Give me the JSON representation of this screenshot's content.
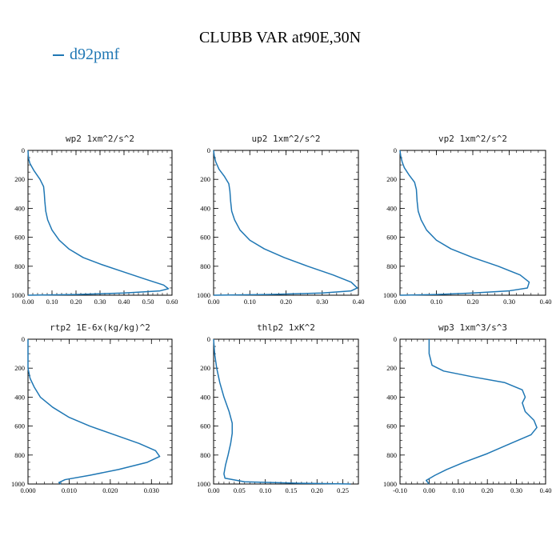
{
  "title": "CLUBB VAR at90E,30N",
  "legend": {
    "label": "d92pmf",
    "color": "#1f77b4"
  },
  "chart_data": [
    {
      "type": "line",
      "title": "wp2   1xm^2/s^2",
      "xlim": [
        0,
        0.6
      ],
      "ylim": [
        0,
        1000
      ],
      "y_inverted": true,
      "xticks": [
        "0.00",
        "0.10",
        "0.20",
        "0.30",
        "0.40",
        "0.50",
        "0.60"
      ],
      "yticks": [
        "0",
        "200",
        "400",
        "600",
        "800",
        "1000"
      ],
      "series": [
        {
          "x": [
            0.0,
            0.001,
            0.003,
            0.008,
            0.025,
            0.05,
            0.065,
            0.068,
            0.07,
            0.074,
            0.082,
            0.1,
            0.13,
            0.17,
            0.23,
            0.31,
            0.4,
            0.49,
            0.565,
            0.585,
            0.55,
            0.4,
            0.2,
            0.0
          ],
          "y": [
            0,
            30,
            60,
            90,
            140,
            200,
            250,
            300,
            350,
            420,
            480,
            550,
            620,
            680,
            740,
            790,
            840,
            890,
            930,
            955,
            970,
            985,
            995,
            1000
          ]
        }
      ]
    },
    {
      "type": "line",
      "title": "up2   1xm^2/s^2",
      "xlim": [
        0,
        0.4
      ],
      "ylim": [
        0,
        1000
      ],
      "y_inverted": true,
      "xticks": [
        "0.00",
        "0.10",
        "0.20",
        "0.30",
        "0.40"
      ],
      "yticks": [
        "0",
        "200",
        "400",
        "600",
        "800",
        "1000"
      ],
      "series": [
        {
          "x": [
            0.0,
            0.002,
            0.006,
            0.015,
            0.03,
            0.042,
            0.045,
            0.047,
            0.05,
            0.058,
            0.073,
            0.1,
            0.14,
            0.195,
            0.26,
            0.33,
            0.38,
            0.397,
            0.38,
            0.3,
            0.15,
            0.0
          ],
          "y": [
            0,
            40,
            80,
            130,
            180,
            230,
            280,
            350,
            420,
            480,
            550,
            620,
            680,
            740,
            800,
            860,
            910,
            950,
            970,
            985,
            995,
            1000
          ]
        }
      ]
    },
    {
      "type": "line",
      "title": "vp2   1xm^2/s^2",
      "xlim": [
        0,
        0.4
      ],
      "ylim": [
        0,
        1000
      ],
      "y_inverted": true,
      "xticks": [
        "0.00",
        "0.10",
        "0.20",
        "0.30",
        "0.40"
      ],
      "yticks": [
        "0",
        "200",
        "400",
        "600",
        "800",
        "1000"
      ],
      "series": [
        {
          "x": [
            0.0,
            0.002,
            0.006,
            0.012,
            0.025,
            0.04,
            0.045,
            0.047,
            0.05,
            0.058,
            0.073,
            0.1,
            0.14,
            0.2,
            0.27,
            0.33,
            0.355,
            0.35,
            0.3,
            0.2,
            0.1,
            0.0
          ],
          "y": [
            0,
            40,
            80,
            120,
            170,
            220,
            270,
            350,
            420,
            480,
            550,
            620,
            680,
            740,
            800,
            860,
            910,
            950,
            970,
            985,
            995,
            1000
          ]
        }
      ]
    },
    {
      "type": "line",
      "title": "rtp2   1E-6x(kg/kg)^2",
      "xlim": [
        0,
        0.035
      ],
      "ylim": [
        0,
        1000
      ],
      "y_inverted": true,
      "xticks": [
        "0.000",
        "0.010",
        "0.020",
        "0.030"
      ],
      "xtick_values": [
        0,
        0.01,
        0.02,
        0.03
      ],
      "yticks": [
        "0",
        "200",
        "400",
        "600",
        "800",
        "1000"
      ],
      "series": [
        {
          "x": [
            0.0,
            0.0,
            0.0,
            0.0005,
            0.0015,
            0.003,
            0.006,
            0.01,
            0.015,
            0.021,
            0.027,
            0.031,
            0.032,
            0.029,
            0.022,
            0.015,
            0.009,
            0.0075,
            0.008
          ],
          "y": [
            0,
            100,
            200,
            270,
            330,
            400,
            470,
            540,
            600,
            660,
            720,
            770,
            810,
            850,
            900,
            940,
            970,
            990,
            1000
          ]
        }
      ]
    },
    {
      "type": "line",
      "title": "thlp2   1xK^2",
      "xlim": [
        0,
        0.28
      ],
      "ylim": [
        0,
        1000
      ],
      "y_inverted": true,
      "xticks": [
        "0.00",
        "0.05",
        "0.10",
        "0.15",
        "0.20",
        "0.25"
      ],
      "xtick_values": [
        0,
        0.05,
        0.1,
        0.15,
        0.2,
        0.25
      ],
      "yticks": [
        "0",
        "200",
        "400",
        "600",
        "800",
        "1000"
      ],
      "series": [
        {
          "x": [
            0.0,
            0.002,
            0.006,
            0.012,
            0.02,
            0.03,
            0.036,
            0.036,
            0.033,
            0.028,
            0.023,
            0.02,
            0.022,
            0.06,
            0.17,
            0.265
          ],
          "y": [
            0,
            100,
            200,
            300,
            400,
            500,
            580,
            650,
            720,
            800,
            870,
            930,
            960,
            985,
            995,
            1000
          ]
        }
      ]
    },
    {
      "type": "line",
      "title": "wp3   1xm^3/s^3",
      "xlim": [
        -0.1,
        0.4
      ],
      "ylim": [
        0,
        1000
      ],
      "y_inverted": true,
      "xticks": [
        "-0.10",
        "0.00",
        "0.10",
        "0.20",
        "0.30",
        "0.40"
      ],
      "yticks": [
        "0",
        "200",
        "400",
        "600",
        "800",
        "1000"
      ],
      "series": [
        {
          "x": [
            0.0,
            0.0,
            0.01,
            0.05,
            0.15,
            0.26,
            0.32,
            0.33,
            0.32,
            0.33,
            0.36,
            0.37,
            0.35,
            0.28,
            0.2,
            0.12,
            0.06,
            0.02,
            -0.01,
            0.0
          ],
          "y": [
            0,
            100,
            180,
            220,
            260,
            300,
            350,
            400,
            440,
            500,
            560,
            610,
            660,
            720,
            790,
            850,
            900,
            940,
            975,
            1000
          ]
        }
      ]
    }
  ]
}
